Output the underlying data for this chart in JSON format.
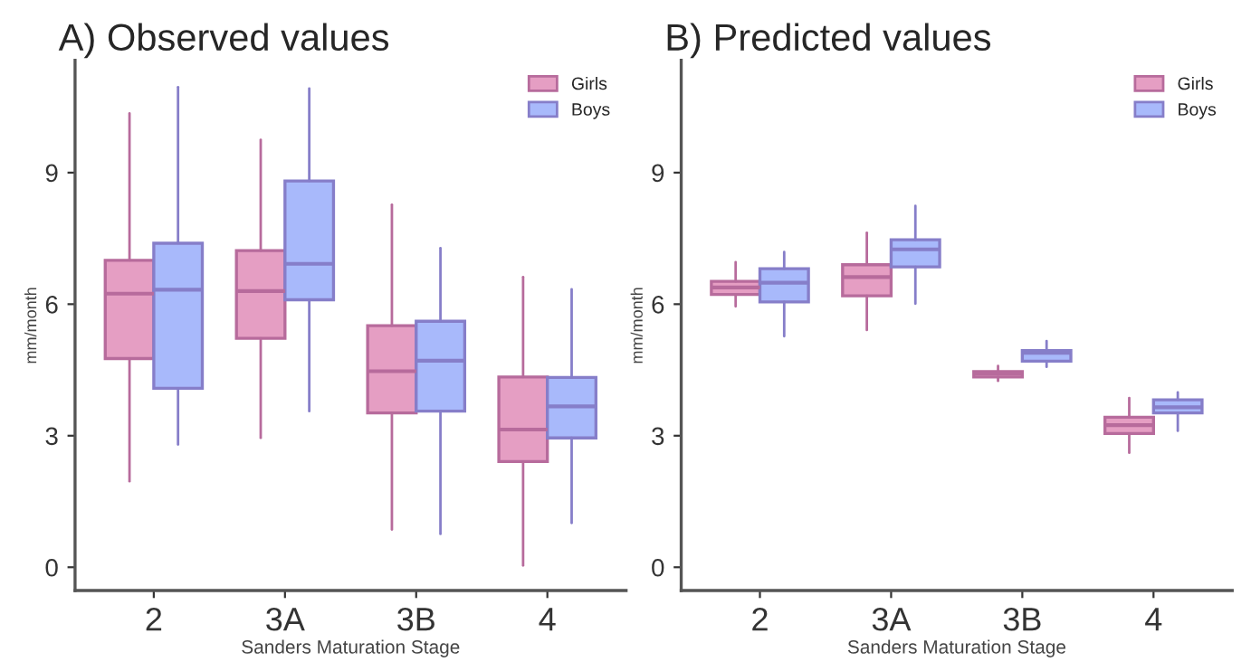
{
  "chart_data": [
    {
      "type": "box",
      "title": "A) Observed values",
      "xlabel": "Sanders Maturation Stage",
      "ylabel": "mm/month",
      "categories": [
        "2",
        "3A",
        "3B",
        "4"
      ],
      "ylim": [
        -0.53,
        11.56
      ],
      "yticks": [
        0,
        3,
        6,
        9
      ],
      "legend": "top right",
      "grid": false,
      "series": [
        {
          "name": "Girls",
          "color": "#e59ec3",
          "boxes": [
            {
              "low": 1.96,
              "q1": 4.76,
              "median": 6.24,
              "q3": 7.0,
              "high": 10.35
            },
            {
              "low": 2.95,
              "q1": 5.22,
              "median": 6.3,
              "q3": 7.22,
              "high": 9.75
            },
            {
              "low": 0.86,
              "q1": 3.52,
              "median": 4.47,
              "q3": 5.51,
              "high": 8.27
            },
            {
              "low": 0.04,
              "q1": 2.41,
              "median": 3.14,
              "q3": 4.34,
              "high": 6.62
            }
          ]
        },
        {
          "name": "Boys",
          "color": "#a8b9fb",
          "boxes": [
            {
              "low": 2.8,
              "q1": 4.08,
              "median": 6.33,
              "q3": 7.39,
              "high": 10.95
            },
            {
              "low": 3.56,
              "q1": 6.1,
              "median": 6.92,
              "q3": 8.81,
              "high": 10.92
            },
            {
              "low": 0.76,
              "q1": 3.56,
              "median": 4.71,
              "q3": 5.61,
              "high": 7.28
            },
            {
              "low": 1.01,
              "q1": 2.95,
              "median": 3.67,
              "q3": 4.33,
              "high": 6.34
            }
          ]
        }
      ]
    },
    {
      "type": "box",
      "title": "B) Predicted values",
      "xlabel": "Sanders Maturation Stage",
      "ylabel": "mm/month",
      "categories": [
        "2",
        "3A",
        "3B",
        "4"
      ],
      "ylim": [
        -0.53,
        11.56
      ],
      "yticks": [
        0,
        3,
        6,
        9
      ],
      "legend": "top right",
      "grid": false,
      "series": [
        {
          "name": "Girls",
          "color": "#e59ec3",
          "boxes": [
            {
              "low": 5.95,
              "q1": 6.22,
              "median": 6.38,
              "q3": 6.52,
              "high": 6.96
            },
            {
              "low": 5.41,
              "q1": 6.19,
              "median": 6.62,
              "q3": 6.9,
              "high": 7.63
            },
            {
              "low": 4.25,
              "q1": 4.34,
              "median": 4.42,
              "q3": 4.46,
              "high": 4.59
            },
            {
              "low": 2.61,
              "q1": 3.05,
              "median": 3.24,
              "q3": 3.42,
              "high": 3.86
            }
          ]
        },
        {
          "name": "Boys",
          "color": "#a8b9fb",
          "boxes": [
            {
              "low": 5.27,
              "q1": 6.05,
              "median": 6.49,
              "q3": 6.81,
              "high": 7.19
            },
            {
              "low": 6.01,
              "q1": 6.85,
              "median": 7.25,
              "q3": 7.47,
              "high": 8.24
            },
            {
              "low": 4.57,
              "q1": 4.7,
              "median": 4.89,
              "q3": 4.94,
              "high": 5.16
            },
            {
              "low": 3.11,
              "q1": 3.52,
              "median": 3.65,
              "q3": 3.82,
              "high": 3.99
            }
          ]
        }
      ]
    }
  ]
}
